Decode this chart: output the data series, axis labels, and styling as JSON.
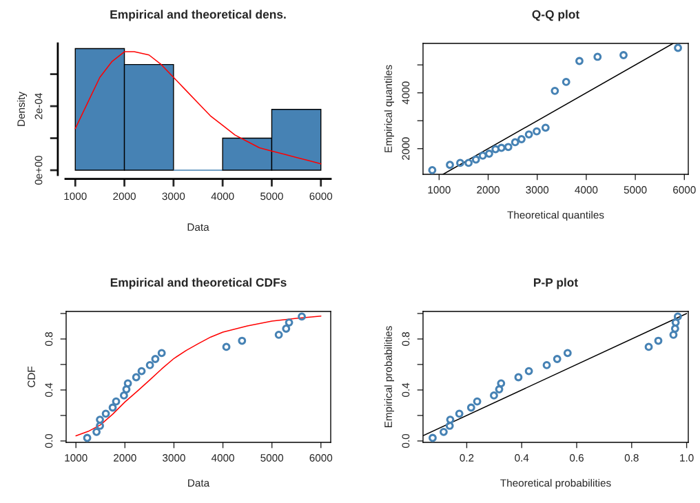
{
  "chart_data": [
    {
      "type": "histogram",
      "title": "Empirical and theoretical dens.",
      "xlabel": "Data",
      "ylabel": "Density",
      "bins": [
        1000,
        2000,
        3000,
        4000,
        5000,
        6000
      ],
      "values": [
        0.00038,
        0.00033,
        0,
        0.0001,
        0.00019
      ],
      "color": "#4682b4",
      "xlim": [
        800,
        6200
      ],
      "ylim": [
        -1.5e-05,
        0.000396
      ],
      "xticks": [
        1000,
        2000,
        3000,
        4000,
        5000,
        6000
      ],
      "yticks": [
        {
          "value": 0,
          "label": "0e+00"
        },
        {
          "value": 0.0001,
          "label": null
        },
        {
          "value": 0.0002,
          "label": "2e-04"
        },
        {
          "value": 0.0003,
          "label": null
        }
      ],
      "series": [
        {
          "type": "line",
          "color": "#ff0000",
          "x": [
            1000,
            1250,
            1500,
            1750,
            2000,
            2200,
            2500,
            2750,
            3000,
            3250,
            3500,
            3750,
            4000,
            4250,
            4500,
            4750,
            5000,
            5250,
            5500,
            5750,
            6000
          ],
          "values": [
            0.00013,
            0.00021,
            0.00029,
            0.00034,
            0.00037,
            0.00037,
            0.00036,
            0.00033,
            0.00029,
            0.00025,
            0.00021,
            0.00017,
            0.00014,
            0.00011,
            9e-05,
            7e-05,
            6e-05,
            5e-05,
            4e-05,
            3e-05,
            2e-05
          ]
        }
      ]
    },
    {
      "type": "scatter",
      "title": "Q-Q plot",
      "xlabel": "Theoretical quantiles",
      "ylabel": "Empirical quantiles",
      "xlim": [
        672,
        6080
      ],
      "ylim": [
        1080,
        5770
      ],
      "xticks": [
        1000,
        2000,
        3000,
        4000,
        5000,
        6000
      ],
      "yticks": [
        2000,
        {
          "value": 3000,
          "label": null
        },
        4000,
        {
          "value": 5000,
          "label": null
        }
      ],
      "series": [
        {
          "type": "scatter",
          "marker": "circle",
          "color": "#4682b4",
          "x": [
            860,
            1220,
            1430,
            1600,
            1750,
            1890,
            2020,
            2150,
            2270,
            2410,
            2550,
            2680,
            2830,
            2990,
            3170,
            3360,
            3590,
            3860,
            4230,
            4760,
            5870
          ],
          "values": [
            1230,
            1420,
            1490,
            1490,
            1610,
            1750,
            1820,
            1980,
            2030,
            2060,
            2230,
            2340,
            2510,
            2620,
            2750,
            4070,
            4390,
            5140,
            5290,
            5350,
            5610
          ]
        },
        {
          "type": "line",
          "color": "#000000",
          "x": [
            1080,
            5770
          ],
          "values": [
            1080,
            5770
          ]
        }
      ]
    },
    {
      "type": "scatter",
      "title": "Empirical and theoretical CDFs",
      "xlabel": "Data",
      "ylabel": "CDF",
      "xlim": [
        800,
        6200
      ],
      "ylim": [
        -0.011,
        1.016
      ],
      "xticks": [
        1000,
        2000,
        3000,
        4000,
        5000,
        6000
      ],
      "yticks": [
        {
          "value": 0,
          "label": "0.0"
        },
        {
          "value": 0.2,
          "label": null
        },
        {
          "value": 0.4,
          "label": "0.4"
        },
        {
          "value": 0.6,
          "label": null
        },
        {
          "value": 0.8,
          "label": "0.8"
        },
        {
          "value": 1.0,
          "label": null
        }
      ],
      "series": [
        {
          "type": "scatter",
          "marker": "circle",
          "color": "#4682b4",
          "x": [
            1230,
            1420,
            1490,
            1490,
            1610,
            1750,
            1820,
            1980,
            2030,
            2060,
            2230,
            2340,
            2510,
            2620,
            2750,
            4070,
            4390,
            5140,
            5290,
            5350,
            5610
          ],
          "values": [
            0.024,
            0.071,
            0.119,
            0.167,
            0.214,
            0.262,
            0.31,
            0.357,
            0.405,
            0.452,
            0.5,
            0.548,
            0.595,
            0.643,
            0.69,
            0.738,
            0.786,
            0.833,
            0.881,
            0.929,
            0.976
          ]
        },
        {
          "type": "line",
          "color": "#ff0000",
          "x": [
            1000,
            1250,
            1500,
            1750,
            2000,
            2250,
            2500,
            2750,
            3000,
            3250,
            3500,
            3750,
            4000,
            4500,
            5000,
            5500,
            6000
          ],
          "values": [
            0.04,
            0.075,
            0.126,
            0.21,
            0.306,
            0.39,
            0.476,
            0.565,
            0.647,
            0.71,
            0.764,
            0.815,
            0.854,
            0.902,
            0.94,
            0.962,
            0.98
          ]
        }
      ]
    },
    {
      "type": "scatter",
      "title": "P-P plot",
      "xlabel": "Theoretical probabilities",
      "ylabel": "Empirical probabilities",
      "xlim": [
        0.041,
        1.006
      ],
      "ylim": [
        -0.011,
        1.016
      ],
      "xticks": [
        {
          "value": 0.2,
          "label": "0.2"
        },
        {
          "value": 0.4,
          "label": "0.4"
        },
        {
          "value": 0.6,
          "label": "0.6"
        },
        {
          "value": 0.8,
          "label": "0.8"
        },
        {
          "value": 1.0,
          "label": "1.0"
        }
      ],
      "yticks": [
        {
          "value": 0,
          "label": "0.0"
        },
        {
          "value": 0.2,
          "label": null
        },
        {
          "value": 0.4,
          "label": "0.4"
        },
        {
          "value": 0.6,
          "label": null
        },
        {
          "value": 0.8,
          "label": "0.8"
        },
        {
          "value": 1.0,
          "label": null
        }
      ],
      "series": [
        {
          "type": "scatter",
          "marker": "circle",
          "color": "#4682b4",
          "x": [
            0.076,
            0.116,
            0.138,
            0.14,
            0.173,
            0.216,
            0.238,
            0.299,
            0.318,
            0.325,
            0.388,
            0.426,
            0.491,
            0.529,
            0.567,
            0.862,
            0.897,
            0.952,
            0.958,
            0.96,
            0.968
          ],
          "values": [
            0.024,
            0.071,
            0.119,
            0.167,
            0.214,
            0.262,
            0.31,
            0.357,
            0.405,
            0.452,
            0.5,
            0.548,
            0.595,
            0.643,
            0.69,
            0.738,
            0.786,
            0.833,
            0.881,
            0.929,
            0.976
          ]
        },
        {
          "type": "line",
          "color": "#000000",
          "x": [
            0.041,
            1.0
          ],
          "values": [
            0.041,
            1.0
          ]
        }
      ]
    }
  ]
}
